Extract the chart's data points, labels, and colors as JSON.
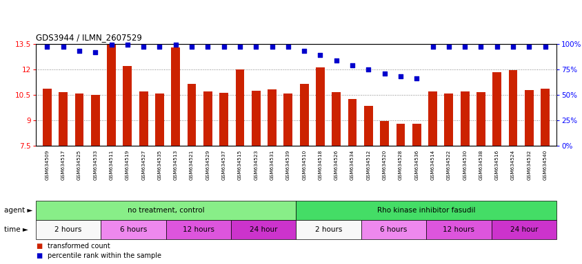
{
  "title": "GDS3944 / ILMN_2607529",
  "categories": [
    "GSM634509",
    "GSM634517",
    "GSM634525",
    "GSM634533",
    "GSM634511",
    "GSM634519",
    "GSM634527",
    "GSM634535",
    "GSM634513",
    "GSM634521",
    "GSM634529",
    "GSM634537",
    "GSM634515",
    "GSM634523",
    "GSM634531",
    "GSM634539",
    "GSM634510",
    "GSM634518",
    "GSM634526",
    "GSM634534",
    "GSM634512",
    "GSM634520",
    "GSM634528",
    "GSM634536",
    "GSM634514",
    "GSM634522",
    "GSM634530",
    "GSM634538",
    "GSM634516",
    "GSM634524",
    "GSM634532",
    "GSM634540"
  ],
  "bar_values": [
    10.85,
    10.65,
    10.58,
    10.5,
    13.45,
    12.22,
    10.72,
    10.6,
    13.3,
    11.15,
    10.72,
    10.62,
    12.0,
    10.75,
    10.83,
    10.6,
    11.15,
    12.12,
    10.65,
    10.25,
    9.85,
    8.95,
    8.78,
    8.8,
    10.7,
    10.58,
    10.7,
    10.68,
    11.85,
    11.95,
    10.8,
    10.88
  ],
  "percentile_values": [
    97,
    97,
    93,
    92,
    99,
    99,
    97,
    97,
    99,
    97,
    97,
    97,
    97,
    97,
    97,
    97,
    93,
    89,
    84,
    79,
    75,
    71,
    68,
    66,
    97,
    97,
    97,
    97,
    97,
    97,
    97,
    97
  ],
  "bar_color": "#cc2200",
  "percentile_color": "#0000cc",
  "ymin": 7.5,
  "ymax": 13.5,
  "yticks_left": [
    7.5,
    9.0,
    10.5,
    12.0,
    13.5
  ],
  "ytick_labels_left": [
    "7.5",
    "9",
    "10.5",
    "12",
    "13.5"
  ],
  "yticks_right_pct": [
    0,
    25,
    50,
    75,
    100
  ],
  "ytick_labels_right": [
    "0%",
    "25%",
    "50%",
    "75%",
    "100%"
  ],
  "agent_groups": [
    {
      "label": "no treatment, control",
      "start": 0,
      "end": 16,
      "color": "#88ee88"
    },
    {
      "label": "Rho kinase inhibitor fasudil",
      "start": 16,
      "end": 32,
      "color": "#44dd66"
    }
  ],
  "time_groups": [
    {
      "label": "2 hours",
      "start": 0,
      "end": 4,
      "color": "#f8f8f8"
    },
    {
      "label": "6 hours",
      "start": 4,
      "end": 8,
      "color": "#ee88ee"
    },
    {
      "label": "12 hours",
      "start": 8,
      "end": 12,
      "color": "#dd55dd"
    },
    {
      "label": "24 hour",
      "start": 12,
      "end": 16,
      "color": "#cc33cc"
    },
    {
      "label": "2 hours",
      "start": 16,
      "end": 20,
      "color": "#f8f8f8"
    },
    {
      "label": "6 hours",
      "start": 20,
      "end": 24,
      "color": "#ee88ee"
    },
    {
      "label": "12 hours",
      "start": 24,
      "end": 28,
      "color": "#dd55dd"
    },
    {
      "label": "24 hour",
      "start": 28,
      "end": 32,
      "color": "#cc33cc"
    }
  ],
  "legend_bar_label": "transformed count",
  "legend_pct_label": "percentile rank within the sample"
}
